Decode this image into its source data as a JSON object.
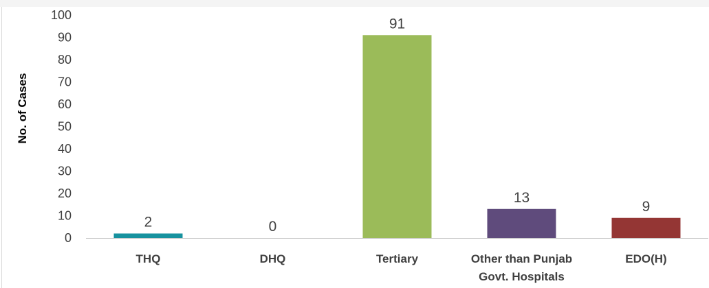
{
  "chart_data": {
    "type": "bar",
    "title": "",
    "xlabel": "",
    "ylabel": "No. of Cases",
    "ylim": [
      0,
      100
    ],
    "yticks": [
      0,
      10,
      20,
      30,
      40,
      50,
      60,
      70,
      80,
      90,
      100
    ],
    "grid": false,
    "legend": "none",
    "categories": [
      [
        "THQ"
      ],
      [
        "DHQ"
      ],
      [
        "Tertiary"
      ],
      [
        "Other than Punjab",
        "Govt. Hospitals"
      ],
      [
        "EDO(H)"
      ]
    ],
    "values": [
      2,
      0,
      91,
      13,
      9
    ],
    "colors": [
      "#17929f",
      "#7f7f7f",
      "#9bbb59",
      "#5f4b7c",
      "#943634"
    ],
    "axis_color": "#bfbfbf",
    "text_color": "#404040"
  }
}
